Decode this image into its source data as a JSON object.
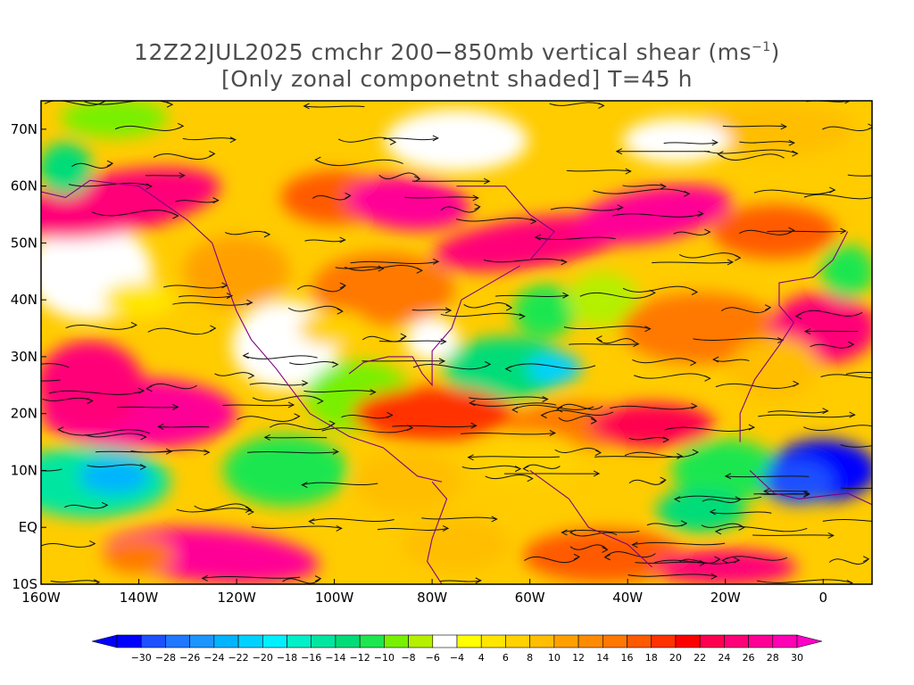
{
  "title": {
    "line1_main": "12Z22JUL2025 cmchr 200−850mb vertical shear (ms",
    "line1_sup": "−1",
    "line1_end": ")",
    "line2": "[Only zonal componetnt shaded] T=45 h"
  },
  "map": {
    "lon_range": [
      -160,
      10
    ],
    "lat_range": [
      -10,
      75
    ],
    "lat_labels": [
      "70N",
      "60N",
      "50N",
      "40N",
      "30N",
      "20N",
      "10N",
      "EQ",
      "10S"
    ],
    "lat_values": [
      70,
      60,
      50,
      40,
      30,
      20,
      10,
      0,
      -10
    ],
    "lon_labels": [
      "160W",
      "140W",
      "120W",
      "100W",
      "80W",
      "60W",
      "40W",
      "20W",
      "0"
    ],
    "lon_values": [
      -160,
      -140,
      -120,
      -100,
      -80,
      -60,
      -40,
      -20,
      0
    ],
    "shaded_field": "zonal component of 200-850mb vertical shear",
    "overlays": [
      "streamlines",
      "coastlines",
      "contours"
    ]
  },
  "colorbar": {
    "labels": [
      "−30",
      "−28",
      "−26",
      "−24",
      "−22",
      "−20",
      "−18",
      "−16",
      "−14",
      "−12",
      "−10",
      "−8",
      "−6",
      "−4",
      "4",
      "6",
      "8",
      "10",
      "12",
      "14",
      "16",
      "18",
      "20",
      "22",
      "24",
      "26",
      "28",
      "30"
    ],
    "colors": [
      "#0000ff",
      "#1e50ff",
      "#1f78ff",
      "#1b96ff",
      "#00b4ff",
      "#00d2ff",
      "#00f0ff",
      "#00f0c8",
      "#00e6a0",
      "#00dc78",
      "#1ee650",
      "#78f000",
      "#b4f000",
      "#ffffff",
      "#ffff00",
      "#ffe600",
      "#ffd200",
      "#ffbe00",
      "#ffa000",
      "#ff8c00",
      "#ff7800",
      "#ff5a00",
      "#ff3200",
      "#ff0000",
      "#ff0050",
      "#ff0078",
      "#ff0096",
      "#ff00b4"
    ],
    "under_color": "#0000ff",
    "over_color": "#ff00c8"
  }
}
